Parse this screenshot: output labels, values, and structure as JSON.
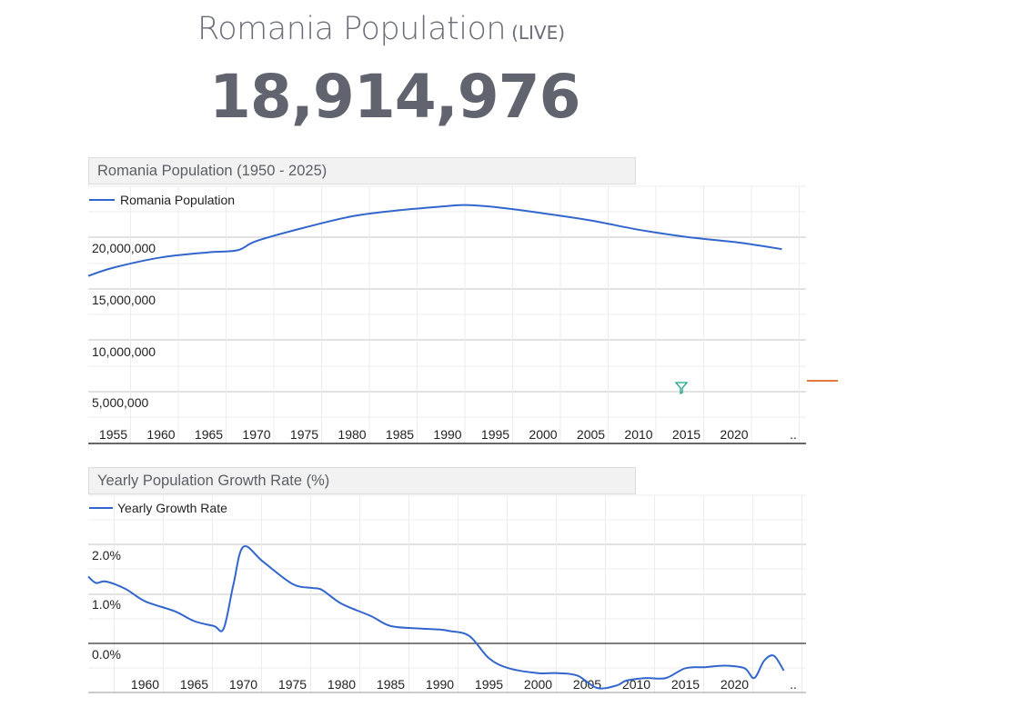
{
  "header": {
    "title": "Romania Population",
    "live_label": "(LIVE)",
    "live_count": "18,914,976"
  },
  "charts": {
    "population_panel_title": "Romania Population (1950 - 2025)",
    "growth_panel_title": "Yearly Population Growth Rate (%)"
  },
  "colors": {
    "line": "#3366cc",
    "grid": "#cccccc",
    "zero": "#333333",
    "accent": "#e07a3a"
  },
  "icons": {
    "cursor": "funnel-cursor-icon"
  },
  "chart_data": [
    {
      "type": "line",
      "title": "Romania Population (1950 - 2025)",
      "legend": "top-left",
      "grid": true,
      "x_tick_labels": [
        "1955",
        "1960",
        "1965",
        "1970",
        "1975",
        "1980",
        "1985",
        "1990",
        "1995",
        "2000",
        "2005",
        "2010",
        "2015",
        "2020",
        ".."
      ],
      "y_tick_labels": [
        "5,000,000",
        "10,000,000",
        "15,000,000",
        "20,000,000"
      ],
      "ylim": [
        0,
        25000000
      ],
      "series": [
        {
          "name": "Romania Population",
          "x": [
            1952,
            1955,
            1960,
            1965,
            1968,
            1970,
            1975,
            1980,
            1985,
            1990,
            1992,
            1995,
            2000,
            2005,
            2010,
            2015,
            2020,
            2023,
            2025
          ],
          "values": [
            16300000,
            17100000,
            18100000,
            18600000,
            18800000,
            19700000,
            21000000,
            22100000,
            22700000,
            23100000,
            23200000,
            23000000,
            22400000,
            21700000,
            20800000,
            20100000,
            19600000,
            19200000,
            18900000
          ]
        }
      ]
    },
    {
      "type": "line",
      "title": "Yearly Population Growth Rate (%)",
      "legend": "top-left",
      "grid": true,
      "x_tick_labels": [
        "1960",
        "1965",
        "1970",
        "1975",
        "1980",
        "1985",
        "1990",
        "1995",
        "2000",
        "2005",
        "2010",
        "2015",
        "2020",
        ".."
      ],
      "y_tick_labels": [
        "0.0%",
        "1.0%",
        "2.0%"
      ],
      "ylim": [
        -1.0,
        3.0
      ],
      "series": [
        {
          "name": "Yearly Growth Rate",
          "x": [
            1952,
            1955,
            1956,
            1958,
            1960,
            1963,
            1965,
            1967,
            1968,
            1969,
            1970,
            1972,
            1975,
            1977,
            1978,
            1980,
            1983,
            1985,
            1988,
            1990,
            1991,
            1993,
            1995,
            1997,
            2000,
            2002,
            2004,
            2006,
            2008,
            2009,
            2011,
            2013,
            2015,
            2017,
            2019,
            2021,
            2022,
            2023,
            2024,
            2025
          ],
          "values": [
            1.35,
            1.22,
            1.25,
            1.1,
            0.85,
            0.65,
            0.45,
            0.35,
            0.3,
            1.2,
            1.95,
            1.65,
            1.2,
            1.12,
            1.08,
            0.8,
            0.55,
            0.35,
            0.3,
            0.28,
            0.25,
            0.15,
            -0.3,
            -0.5,
            -0.6,
            -0.6,
            -0.65,
            -0.9,
            -0.85,
            -0.75,
            -0.7,
            -0.7,
            -0.5,
            -0.48,
            -0.45,
            -0.5,
            -0.7,
            -0.35,
            -0.25,
            -0.55
          ]
        }
      ]
    }
  ]
}
